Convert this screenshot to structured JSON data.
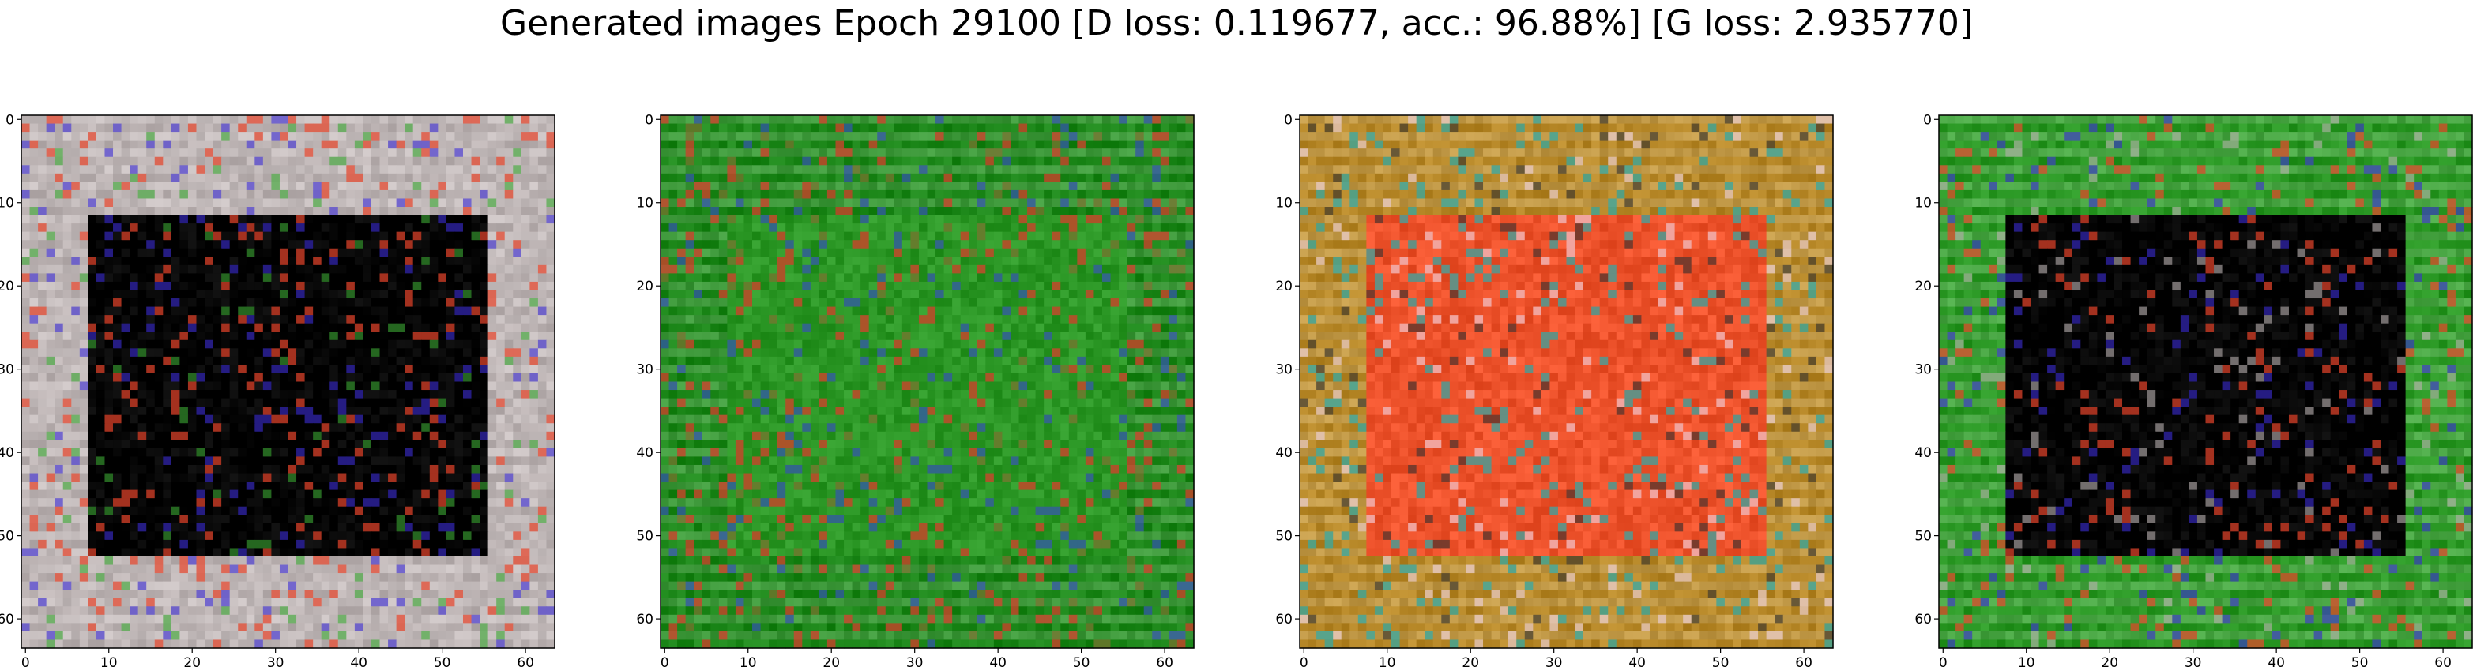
{
  "figure": {
    "title": "Generated images Epoch 29100 [D loss: 0.119677, acc.: 96.88%] [G loss: 2.935770]"
  },
  "chart_data": {
    "type": "image-grid",
    "title": "Generated images Epoch 29100 [D loss: 0.119677, acc.: 96.88%] [G loss: 2.935770]",
    "panels": [
      {
        "id": "sample-1",
        "xlim": [
          -0.5,
          63.5
        ],
        "ylim": [
          63.5,
          -0.5
        ],
        "xticks": [
          0,
          10,
          20,
          30,
          40,
          50,
          60
        ],
        "yticks": [
          0,
          10,
          20,
          30,
          40,
          50,
          60
        ],
        "palette": {
          "border": "#bdb4b4",
          "inner": "#050505",
          "accent1": "#e8442a",
          "accent2": "#3b2bd6",
          "accent3": "#3aa832"
        }
      },
      {
        "id": "sample-2",
        "xlim": [
          -0.5,
          63.5
        ],
        "ylim": [
          63.5,
          -0.5
        ],
        "xticks": [
          0,
          10,
          20,
          30,
          40,
          50,
          60
        ],
        "yticks": [
          0,
          10,
          20,
          30,
          40,
          50,
          60
        ],
        "palette": {
          "border": "#1f8a1c",
          "inner": "#2e9a28",
          "accent1": "#e0362a",
          "accent2": "#3545c8",
          "accent3": "#8a6a30"
        }
      },
      {
        "id": "sample-3",
        "xlim": [
          -0.5,
          63.5
        ],
        "ylim": [
          63.5,
          -0.5
        ],
        "xticks": [
          0,
          10,
          20,
          30,
          40,
          50,
          60
        ],
        "yticks": [
          0,
          10,
          20,
          30,
          40,
          50,
          60
        ],
        "palette": {
          "border": "#b98a2a",
          "inner": "#f0552e",
          "accent1": "#2aa8a8",
          "accent2": "#f2d8e8",
          "accent3": "#2a2a2a"
        }
      },
      {
        "id": "sample-4",
        "xlim": [
          -0.5,
          63.5
        ],
        "ylim": [
          63.5,
          -0.5
        ],
        "xticks": [
          0,
          10,
          20,
          30,
          40,
          50,
          60
        ],
        "yticks": [
          0,
          10,
          20,
          30,
          40,
          50,
          60
        ],
        "palette": {
          "border": "#2c9a26",
          "inner": "#050505",
          "accent1": "#e8442a",
          "accent2": "#3b2bd6",
          "accent3": "#bdb4b4"
        }
      }
    ]
  }
}
